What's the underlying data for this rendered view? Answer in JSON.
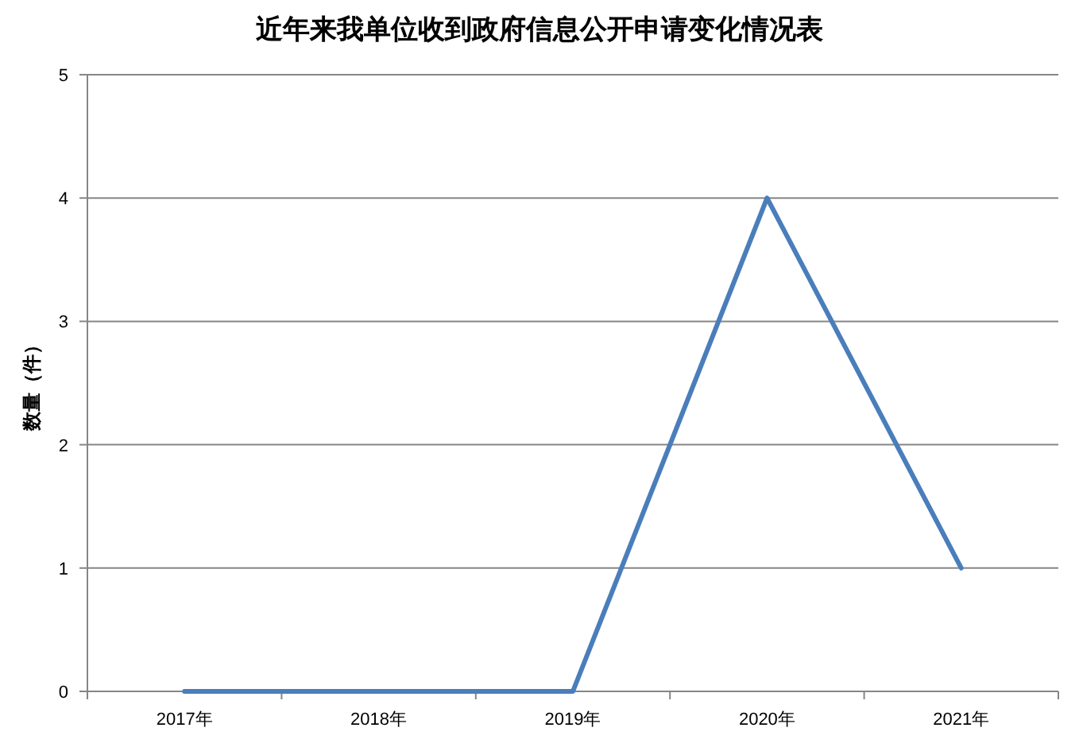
{
  "chart_data": {
    "type": "line",
    "title": "近年来我单位收到政府信息公开申请变化情况表",
    "ylabel": "数量（件）",
    "categories": [
      "2017年",
      "2018年",
      "2019年",
      "2020年",
      "2021年"
    ],
    "series": [
      {
        "color": "#4a7ebb",
        "values": [
          0,
          0,
          0,
          4,
          1
        ]
      }
    ],
    "ylim": [
      0,
      5
    ],
    "yticks": [
      0,
      1,
      2,
      3,
      4,
      5
    ],
    "grid": "y",
    "marker": "none",
    "line_style": "solid"
  }
}
